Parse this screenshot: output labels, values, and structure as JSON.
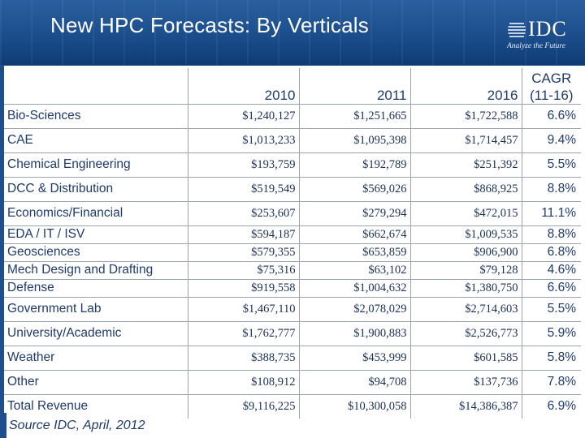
{
  "slide": {
    "title": "New HPC Forecasts: By Verticals",
    "source": "Source IDC, April, 2012",
    "logo": {
      "wordmark": "IDC",
      "tagline": "Analyze the Future",
      "icon": "idc-globe-icon"
    },
    "colors": {
      "header_bg": "#1e4f8c",
      "text": "#1f3a6b"
    }
  },
  "table": {
    "headers": {
      "col1": "2010",
      "col2": "2011",
      "col3": "2016",
      "cagr_line1": "CAGR",
      "cagr_line2": "(11-16)"
    },
    "rows": [
      {
        "name": "Bio-Sciences",
        "v2010": "$1,240,127",
        "v2011": "$1,251,665",
        "v2016": "$1,722,588",
        "cagr": "6.6%"
      },
      {
        "name": "CAE",
        "v2010": "$1,013,233",
        "v2011": "$1,095,398",
        "v2016": "$1,714,457",
        "cagr": "9.4%"
      },
      {
        "name": "Chemical Engineering",
        "v2010": "$193,759",
        "v2011": "$192,789",
        "v2016": "$251,392",
        "cagr": "5.5%"
      },
      {
        "name": "DCC & Distribution",
        "v2010": "$519,549",
        "v2011": "$569,026",
        "v2016": "$868,925",
        "cagr": "8.8%"
      },
      {
        "name": "Economics/Financial",
        "v2010": "$253,607",
        "v2011": "$279,294",
        "v2016": "$472,015",
        "cagr": "11.1%"
      },
      {
        "name": "EDA / IT / ISV",
        "v2010": "$594,187",
        "v2011": "$662,674",
        "v2016": "$1,009,535",
        "cagr": "8.8%"
      },
      {
        "name": "Geosciences",
        "v2010": "$579,355",
        "v2011": "$653,859",
        "v2016": "$906,900",
        "cagr": "6.8%"
      },
      {
        "name": "Mech Design and Drafting",
        "v2010": "$75,316",
        "v2011": "$63,102",
        "v2016": "$79,128",
        "cagr": "4.6%"
      },
      {
        "name": "Defense",
        "v2010": "$919,558",
        "v2011": "$1,004,632",
        "v2016": "$1,380,750",
        "cagr": "6.6%"
      },
      {
        "name": "Government Lab",
        "v2010": "$1,467,110",
        "v2011": "$2,078,029",
        "v2016": "$2,714,603",
        "cagr": "5.5%"
      },
      {
        "name": "University/Academic",
        "v2010": "$1,762,777",
        "v2011": "$1,900,883",
        "v2016": "$2,526,773",
        "cagr": "5.9%"
      },
      {
        "name": "Weather",
        "v2010": "$388,735",
        "v2011": "$453,999",
        "v2016": "$601,585",
        "cagr": "5.8%"
      },
      {
        "name": "Other",
        "v2010": "$108,912",
        "v2011": "$94,708",
        "v2016": "$137,736",
        "cagr": "7.8%"
      },
      {
        "name": "Total Revenue",
        "v2010": "$9,116,225",
        "v2011": "$10,300,058",
        "v2016": "$14,386,387",
        "cagr": "6.9%"
      }
    ]
  }
}
